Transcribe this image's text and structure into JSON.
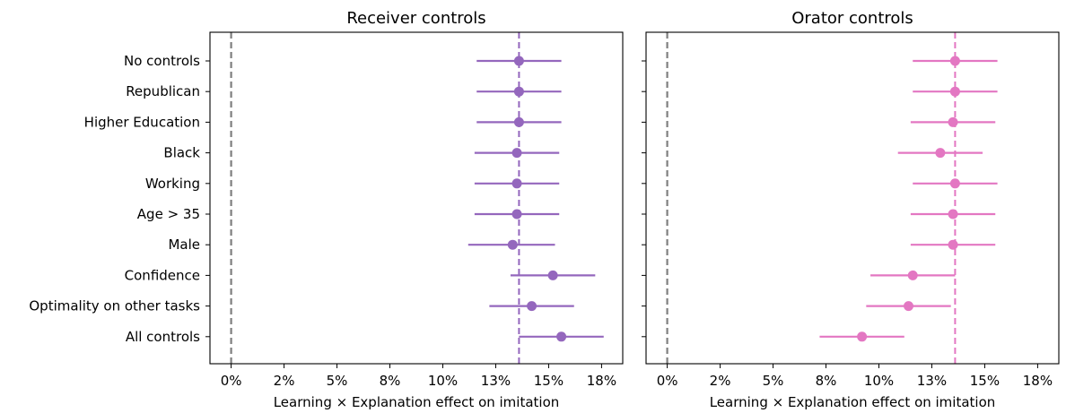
{
  "chart_data": [
    {
      "type": "dot-errorbar",
      "title": "Receiver controls",
      "xlabel": "Learning × Explanation effect on imitation",
      "ylabel": "",
      "xlim": [
        -0.01,
        0.185
      ],
      "xticks": [
        0,
        0.025,
        0.05,
        0.075,
        0.1,
        0.125,
        0.15,
        0.175
      ],
      "xtick_labels": [
        "0%",
        "2%",
        "5%",
        "8%",
        "10%",
        "13%",
        "15%",
        "18%"
      ],
      "reference_line": 0.136,
      "zero_line": 0,
      "color": "#9467bd",
      "categories": [
        "No controls",
        "Republican",
        "Higher Education",
        "Black",
        "Working",
        "Age > 35",
        "Male",
        "Confidence",
        "Optimality on other tasks",
        "All controls"
      ],
      "estimates": [
        0.136,
        0.136,
        0.136,
        0.135,
        0.135,
        0.135,
        0.133,
        0.152,
        0.142,
        0.156
      ],
      "ci_low": [
        0.116,
        0.116,
        0.116,
        0.115,
        0.115,
        0.115,
        0.112,
        0.132,
        0.122,
        0.136
      ],
      "ci_high": [
        0.156,
        0.156,
        0.156,
        0.155,
        0.155,
        0.155,
        0.153,
        0.172,
        0.162,
        0.176
      ]
    },
    {
      "type": "dot-errorbar",
      "title": "Orator controls",
      "xlabel": "Learning × Explanation effect on imitation",
      "ylabel": "",
      "xlim": [
        -0.01,
        0.185
      ],
      "xticks": [
        0,
        0.025,
        0.05,
        0.075,
        0.1,
        0.125,
        0.15,
        0.175
      ],
      "xtick_labels": [
        "0%",
        "2%",
        "5%",
        "8%",
        "10%",
        "13%",
        "15%",
        "18%"
      ],
      "reference_line": 0.136,
      "zero_line": 0,
      "color": "#e377c2",
      "categories": [
        "No controls",
        "Republican",
        "Higher Education",
        "Black",
        "Working",
        "Age > 35",
        "Male",
        "Confidence",
        "Optimality on other tasks",
        "All controls"
      ],
      "estimates": [
        0.136,
        0.136,
        0.135,
        0.129,
        0.136,
        0.135,
        0.135,
        0.116,
        0.114,
        0.092
      ],
      "ci_low": [
        0.116,
        0.116,
        0.115,
        0.109,
        0.116,
        0.115,
        0.115,
        0.096,
        0.094,
        0.072
      ],
      "ci_high": [
        0.156,
        0.156,
        0.155,
        0.149,
        0.156,
        0.155,
        0.155,
        0.136,
        0.134,
        0.112
      ]
    }
  ]
}
